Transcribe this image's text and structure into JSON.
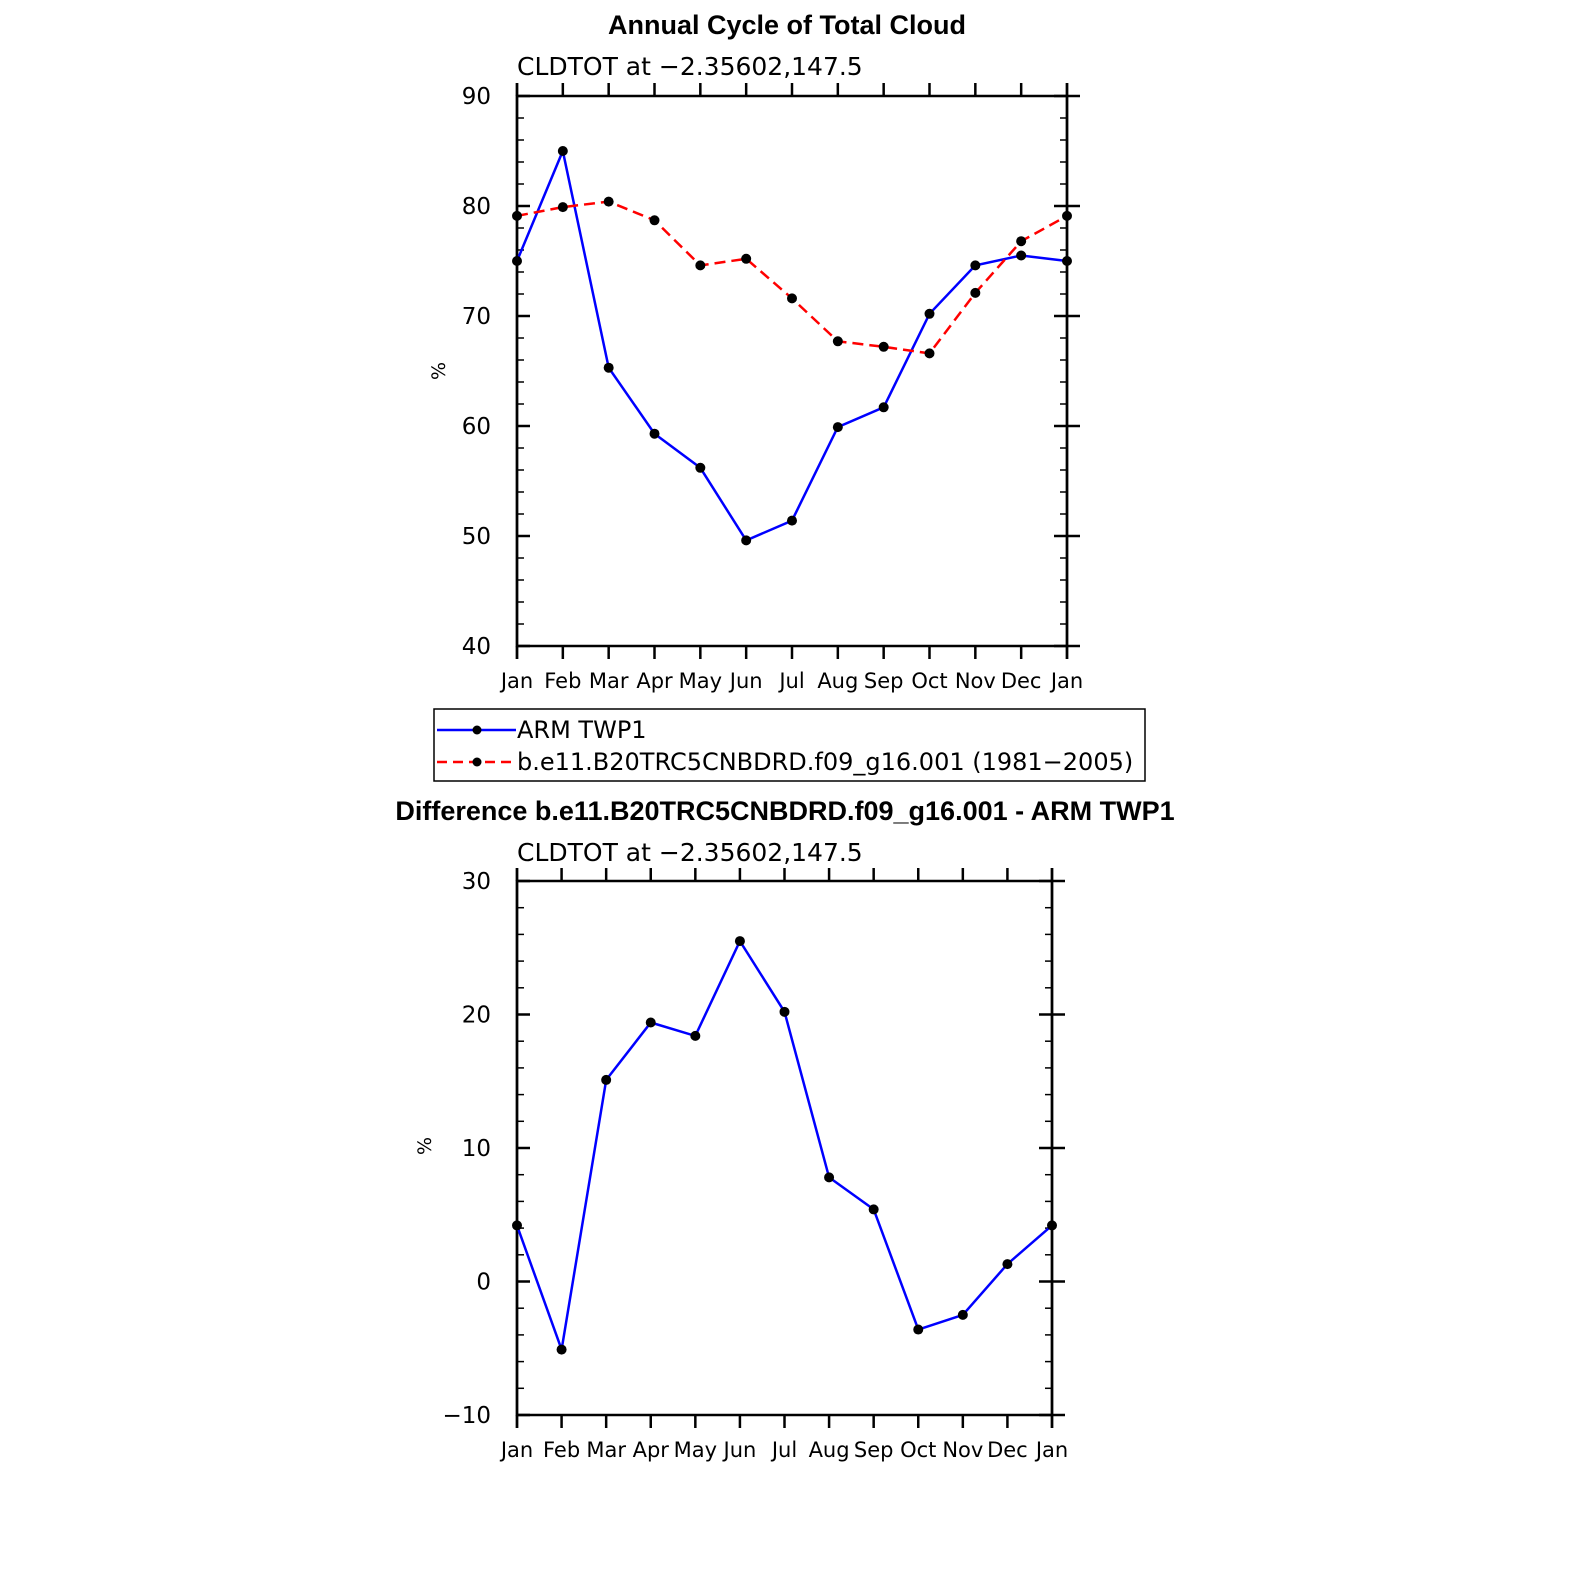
{
  "chart_data": [
    {
      "type": "line",
      "title": "Annual Cycle of Total Cloud",
      "subtitle": "CLDTOT at −2.35602,147.5",
      "xlabel": "",
      "ylabel": "%",
      "categories": [
        "Jan",
        "Feb",
        "Mar",
        "Apr",
        "May",
        "Jun",
        "Jul",
        "Aug",
        "Sep",
        "Oct",
        "Nov",
        "Dec",
        "Jan"
      ],
      "ylim": [
        40,
        90
      ],
      "yticks": [
        40,
        50,
        60,
        70,
        80,
        90
      ],
      "series": [
        {
          "name": "ARM TWP1",
          "color": "#0000ff",
          "dash": "solid",
          "values": [
            75.0,
            85.0,
            65.3,
            59.3,
            56.2,
            49.6,
            51.4,
            59.9,
            61.7,
            70.2,
            74.6,
            75.5,
            75.0
          ]
        },
        {
          "name": "b.e11.B20TRC5CNBDRD.f09_g16.001 (1981−2005)",
          "color": "#ff0000",
          "dash": "dashed",
          "values": [
            79.1,
            79.9,
            80.4,
            78.7,
            74.6,
            75.2,
            71.6,
            67.7,
            67.2,
            66.6,
            72.1,
            76.8,
            79.1
          ]
        }
      ],
      "legend": [
        "ARM TWP1",
        "b.e11.B20TRC5CNBDRD.f09_g16.001 (1981−2005)"
      ]
    },
    {
      "type": "line",
      "title": "Difference b.e11.B20TRC5CNBDRD.f09_g16.001 - ARM TWP1",
      "subtitle": "CLDTOT at −2.35602,147.5",
      "xlabel": "",
      "ylabel": "%",
      "categories": [
        "Jan",
        "Feb",
        "Mar",
        "Apr",
        "May",
        "Jun",
        "Jul",
        "Aug",
        "Sep",
        "Oct",
        "Nov",
        "Dec",
        "Jan"
      ],
      "ylim": [
        -10,
        30
      ],
      "yticks": [
        -10,
        0,
        10,
        20,
        30
      ],
      "series": [
        {
          "name": "Difference",
          "color": "#0000ff",
          "dash": "solid",
          "values": [
            4.2,
            -5.1,
            15.1,
            19.4,
            18.4,
            25.5,
            20.2,
            7.8,
            5.4,
            -3.6,
            -2.5,
            1.3,
            4.2
          ]
        }
      ]
    }
  ]
}
